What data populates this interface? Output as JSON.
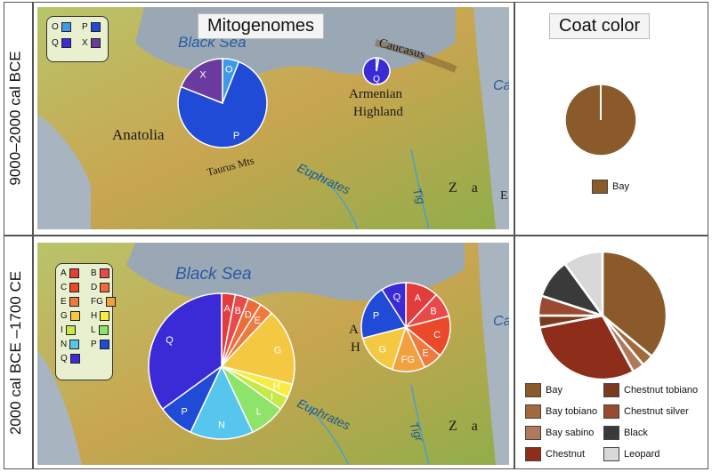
{
  "row_labels": [
    "9000–2000 cal BCE",
    "2000 cal BCE –1700 CE"
  ],
  "panel_titles": {
    "mitogenomes": "Mitogenomes",
    "coat": "Coat color"
  },
  "map_labels_top": {
    "black_sea": "Black Sea",
    "caucasus": "Caucasus",
    "armenian": "Armenian",
    "highland": "Highland",
    "anatolia": "Anatolia",
    "taurus": "Taurus Mts",
    "euphrates": "Euphrates",
    "tigris": "Tig",
    "zagros": "Z a",
    "caspian": "Ca",
    "edge_e": "E"
  },
  "map_labels_bottom": {
    "black_sea": "Black Sea",
    "euphrates": "Euphrates",
    "tigris": "Tigr",
    "zagros": "Z a",
    "caspian": "Ca",
    "a": "A",
    "h": "H"
  },
  "colors": {
    "O": "#3d9ae8",
    "P": "#1f4bd6",
    "Q": "#3a2bd6",
    "X": "#6a3a9e",
    "A": "#e23c3c",
    "B": "#e84a4a",
    "C": "#ea4a2a",
    "D": "#ed6a3a",
    "E": "#f07a3e",
    "FG": "#f2a040",
    "G": "#f5c842",
    "H": "#f8ec40",
    "I": "#c6e848",
    "L": "#8ee36a",
    "N": "#56c6ee"
  },
  "legend_top": [
    "O",
    "P",
    "Q",
    "X"
  ],
  "legend_bottom": [
    "A",
    "B",
    "C",
    "D",
    "E",
    "FG",
    "G",
    "H",
    "I",
    "L",
    "N",
    "P",
    "Q"
  ],
  "chart_data": [
    {
      "type": "pie",
      "name": "Anatolia 9000–2000 cal BCE",
      "categories": [
        "O",
        "P",
        "X"
      ],
      "values": [
        6,
        75,
        19
      ]
    },
    {
      "type": "pie",
      "name": "Armenian Highland 9000–2000 cal BCE",
      "categories": [
        "Q",
        "O"
      ],
      "values": [
        97,
        3
      ]
    },
    {
      "type": "pie",
      "name": "Anatolia 2000 cal BCE–1700 CE",
      "categories": [
        "A",
        "B",
        "D",
        "E",
        "G",
        "H",
        "I",
        "L",
        "N",
        "P",
        "Q"
      ],
      "values": [
        3,
        3,
        3,
        3,
        17,
        3,
        3,
        8,
        14,
        8,
        35
      ]
    },
    {
      "type": "pie",
      "name": "Armenian Highland 2000 cal BCE–1700 CE",
      "categories": [
        "A",
        "B",
        "C",
        "E",
        "FG",
        "G",
        "P",
        "Q"
      ],
      "values": [
        12,
        9,
        15,
        7,
        12,
        16,
        20,
        9
      ]
    },
    {
      "type": "pie",
      "name": "Coat color 9000–2000 cal BCE",
      "categories": [
        "Bay"
      ],
      "values": [
        100
      ]
    },
    {
      "type": "pie",
      "name": "Coat color 2000 cal BCE–1700 CE",
      "categories": [
        "Bay",
        "Bay tobiano",
        "Bay sabino",
        "Chestnut",
        "Chestnut tobiano",
        "Chestnut silver",
        "Black",
        "Leopard"
      ],
      "values": [
        36,
        3,
        3,
        30,
        3,
        5,
        10,
        10
      ]
    }
  ],
  "coat_legend_top": [
    "Bay"
  ],
  "coat_legend_bottom": [
    "Bay",
    "Chestnut tobiano",
    "Bay tobiano",
    "Chestnut silver",
    "Bay sabino",
    "Black",
    "Chestnut",
    "Leopard"
  ],
  "coat_colors": {
    "Bay": "#8b5a2b",
    "Bay tobiano": "#a06a3a",
    "Bay sabino": "#b07a5a",
    "Chestnut": "#8e2e1a",
    "Chestnut tobiano": "#7a3a20",
    "Chestnut silver": "#9a4a30",
    "Black": "#3a3a3a",
    "Leopard": "#d8d8d8"
  }
}
